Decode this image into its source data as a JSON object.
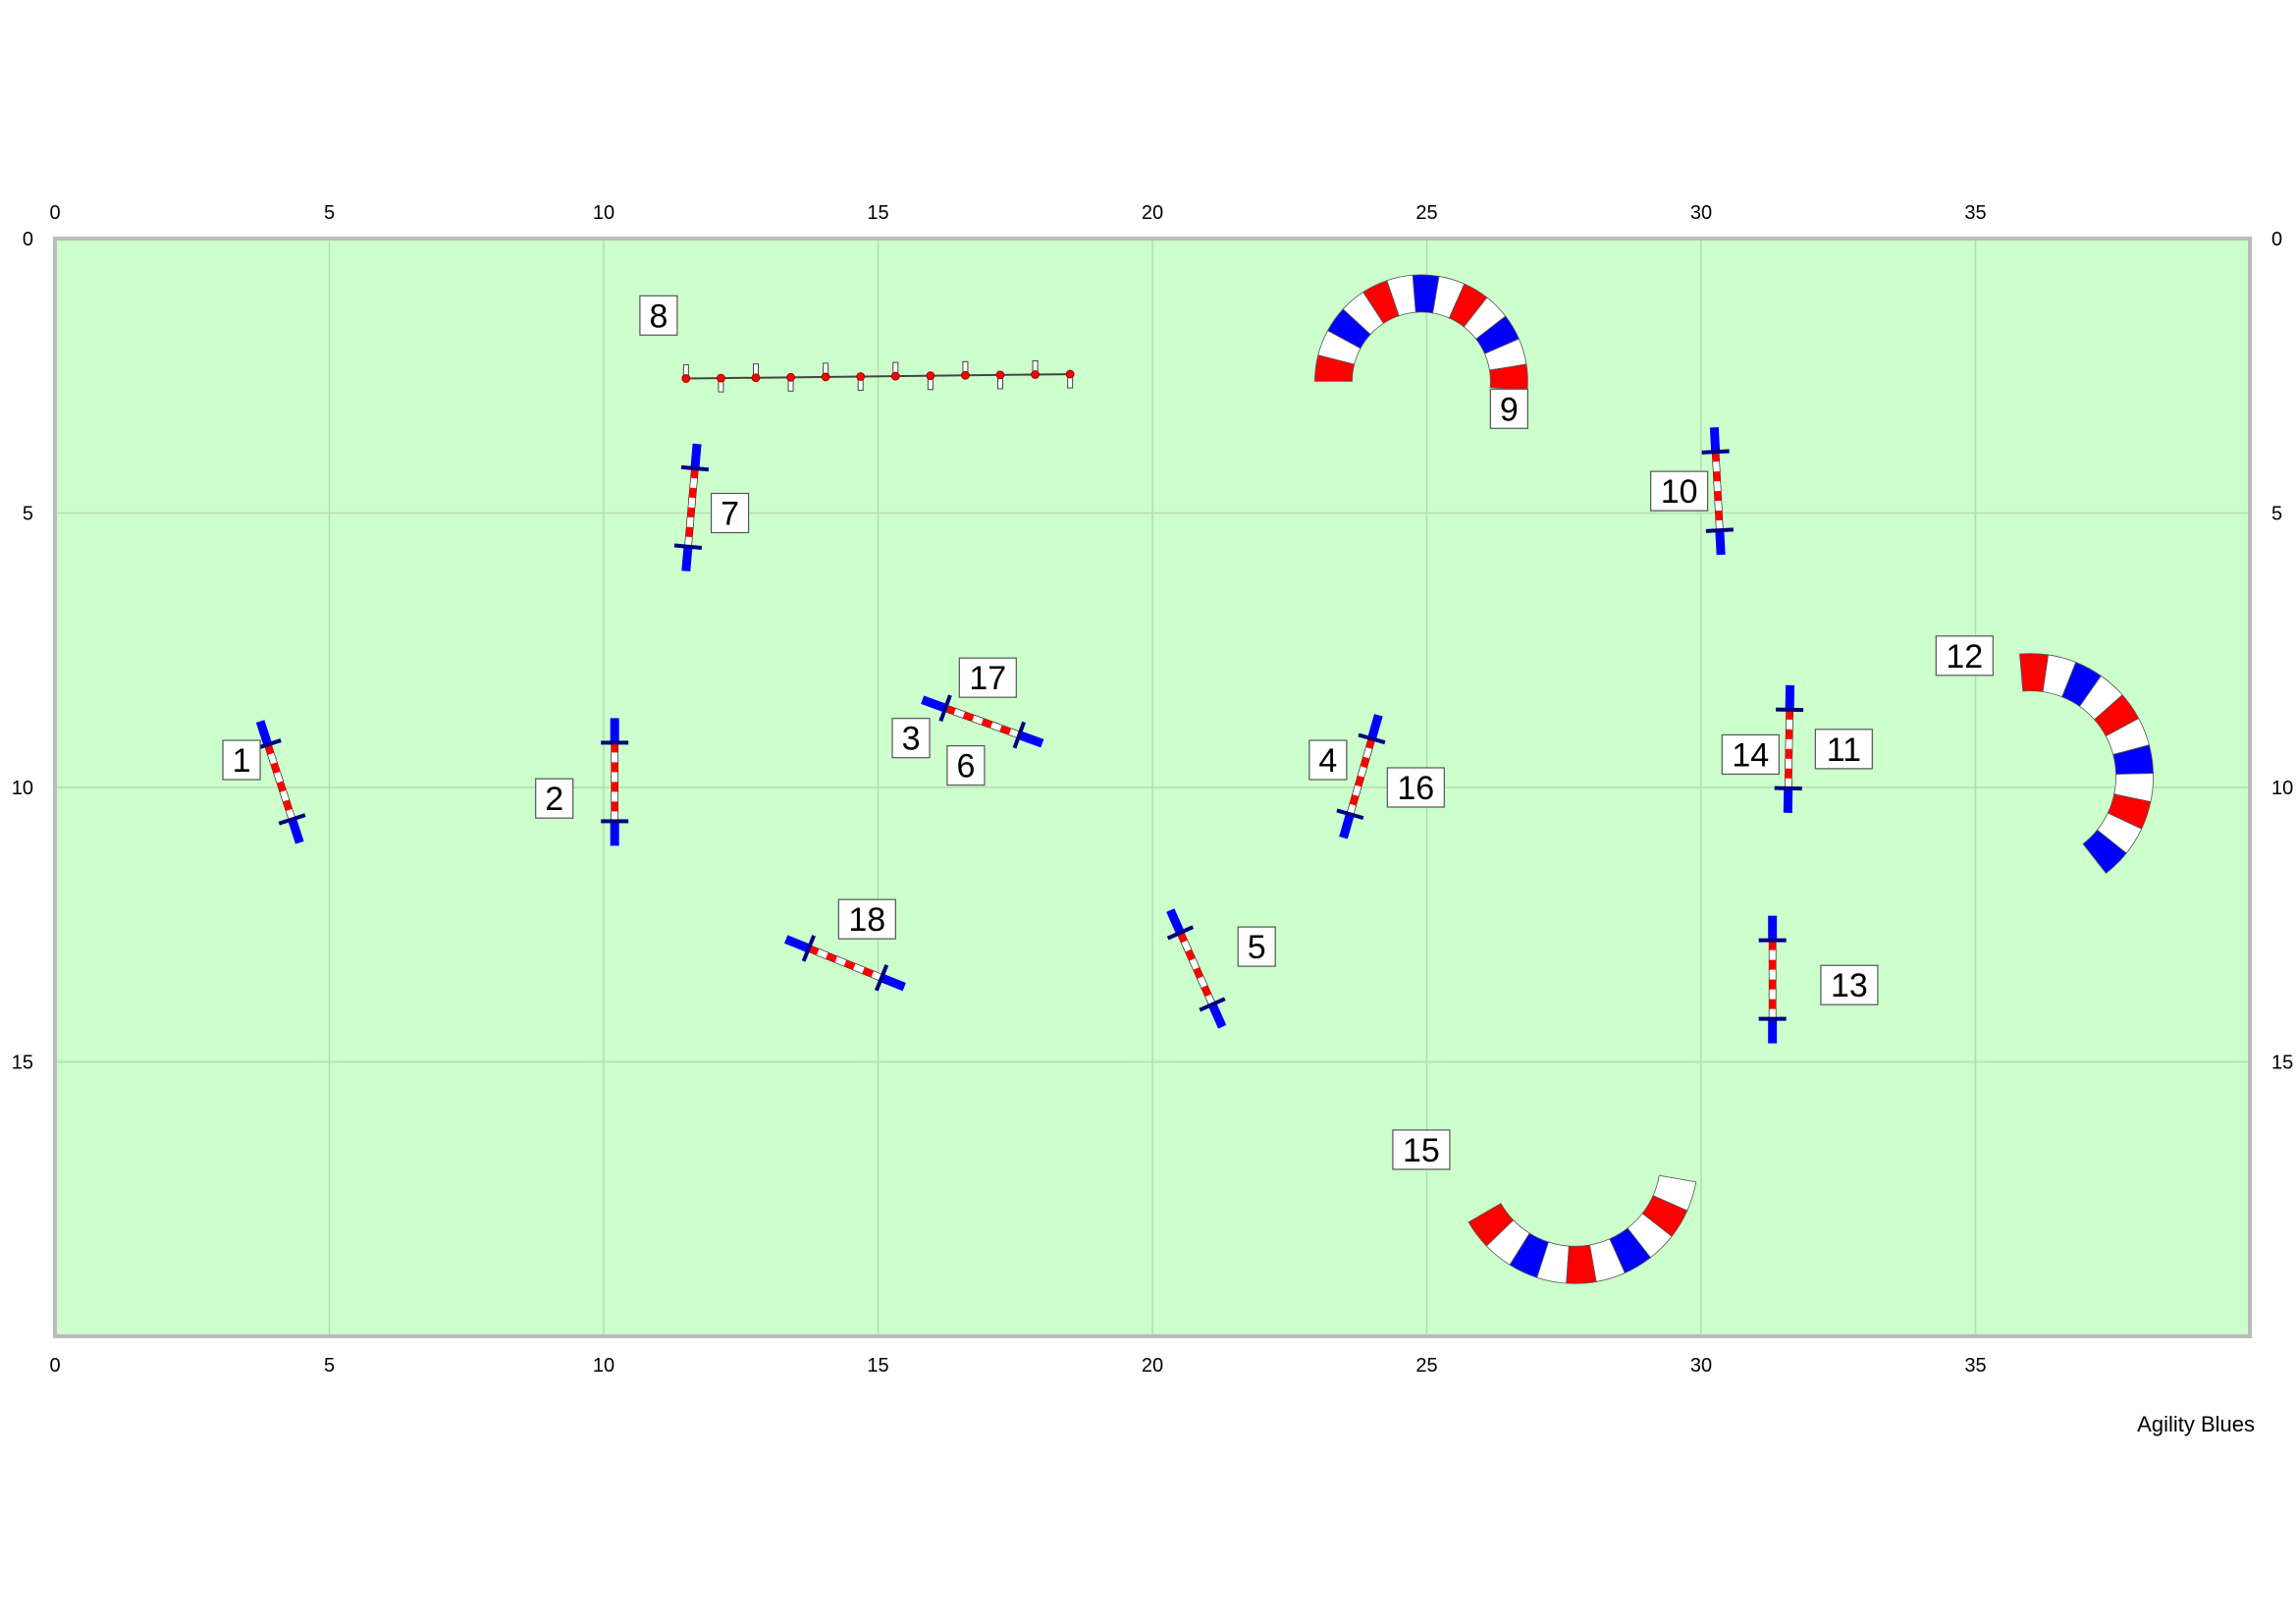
{
  "course": {
    "width_m": 40,
    "height_m": 20,
    "field_color": "#ccffcc",
    "border_color": "#bbbbbb",
    "grid_color": "#b4dcb4",
    "x_ticks": [
      0,
      5,
      10,
      15,
      20,
      25,
      30,
      35
    ],
    "y_ticks": [
      0,
      5,
      10,
      15
    ],
    "colors": {
      "red": "#ff0000",
      "blue": "#0000ff",
      "white": "#ffffff",
      "outline": "#000000"
    }
  },
  "jumps": [
    {
      "x": 4.1,
      "y": 9.9,
      "angle_deg": 72
    },
    {
      "x": 10.2,
      "y": 9.9,
      "angle_deg": 90
    },
    {
      "x": 16.9,
      "y": 8.8,
      "angle_deg": 20
    },
    {
      "x": 23.8,
      "y": 9.8,
      "angle_deg": 106
    },
    {
      "x": 20.8,
      "y": 13.3,
      "angle_deg": 66
    },
    {
      "x": 11.6,
      "y": 4.9,
      "angle_deg": 95
    },
    {
      "x": 30.3,
      "y": 4.6,
      "angle_deg": 87
    },
    {
      "x": 31.6,
      "y": 9.3,
      "angle_deg": 91
    },
    {
      "x": 31.3,
      "y": 13.5,
      "angle_deg": 90
    },
    {
      "x": 14.4,
      "y": 13.2,
      "angle_deg": 22
    }
  ],
  "tunnels": [
    {
      "cx": 24.9,
      "cy": 2.6,
      "r": 1.6,
      "start_deg": 180,
      "end_deg": 365
    },
    {
      "cx": 36.0,
      "cy": 9.8,
      "r": 1.9,
      "start_deg": 265,
      "end_deg": 412
    },
    {
      "cx": 27.7,
      "cy": 16.8,
      "r": 1.9,
      "start_deg": 150,
      "end_deg": 10
    }
  ],
  "weaves": {
    "x1": 11.5,
    "y1": 2.55,
    "x2": 18.5,
    "y2": 2.47,
    "poles": 12
  },
  "numbers": [
    {
      "text": "1",
      "x": 3.4,
      "y": 9.5
    },
    {
      "text": "2",
      "x": 9.1,
      "y": 10.2
    },
    {
      "text": "3",
      "x": 15.6,
      "y": 9.1
    },
    {
      "text": "4",
      "x": 23.2,
      "y": 9.5
    },
    {
      "text": "5",
      "x": 21.9,
      "y": 12.9
    },
    {
      "text": "6",
      "x": 16.6,
      "y": 9.6
    },
    {
      "text": "7",
      "x": 12.3,
      "y": 5.0
    },
    {
      "text": "8",
      "x": 11.0,
      "y": 1.4
    },
    {
      "text": "9",
      "x": 26.5,
      "y": 3.1
    },
    {
      "text": "10",
      "x": 29.6,
      "y": 4.6
    },
    {
      "text": "11",
      "x": 32.6,
      "y": 9.3
    },
    {
      "text": "12",
      "x": 34.8,
      "y": 7.6
    },
    {
      "text": "13",
      "x": 32.7,
      "y": 13.6
    },
    {
      "text": "14",
      "x": 30.9,
      "y": 9.4
    },
    {
      "text": "15",
      "x": 24.9,
      "y": 16.6
    },
    {
      "text": "16",
      "x": 24.8,
      "y": 10.0
    },
    {
      "text": "17",
      "x": 17.0,
      "y": 8.0
    },
    {
      "text": "18",
      "x": 14.8,
      "y": 12.4
    }
  ],
  "credit": "Agility Blues"
}
